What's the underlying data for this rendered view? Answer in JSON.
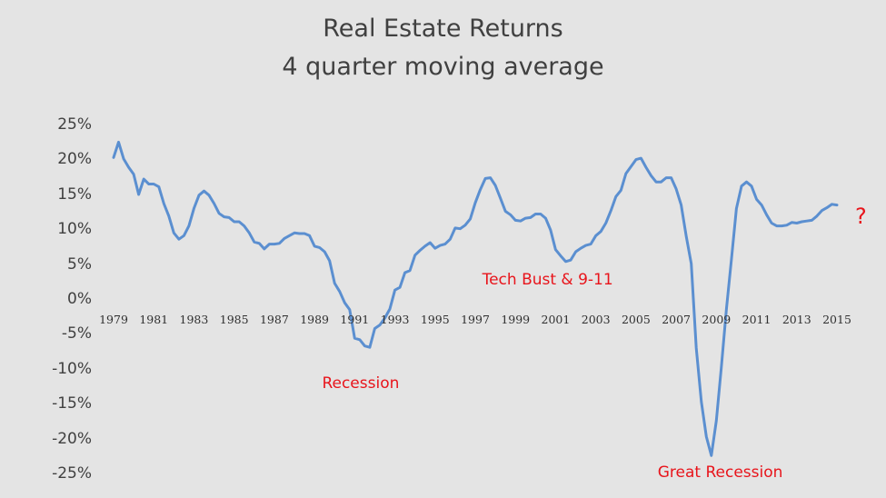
{
  "chart_data": {
    "type": "line",
    "title": "Real Estate Returns",
    "subtitle": "4 quarter moving average",
    "xlabel": "",
    "ylabel": "",
    "ylim": [
      -25,
      25
    ],
    "xlim": [
      1979,
      2015
    ],
    "grid": false,
    "ytick_labels": [
      "25%",
      "20%",
      "15%",
      "10%",
      "5%",
      "0%",
      "-5%",
      "-10%",
      "-15%",
      "-20%",
      "-25%"
    ],
    "xtick_labels": [
      "1979",
      "1981",
      "1983",
      "1985",
      "1987",
      "1989",
      "1991",
      "1993",
      "1995",
      "1997",
      "1999",
      "2001",
      "2003",
      "2005",
      "2007",
      "2009",
      "2011",
      "2013",
      "2015"
    ],
    "line_color": "#5b8fd0",
    "annotation_color": "#e8141b",
    "annotations": [
      {
        "text": "Recession",
        "x": 1991.3,
        "y": -12
      },
      {
        "text": "Tech Bust & 9-11",
        "x": 2000.6,
        "y": 2.8
      },
      {
        "text": "Great Recession",
        "x": 2009.2,
        "y": -24.8
      },
      {
        "text": "?",
        "x": 2016.2,
        "y": 12
      }
    ],
    "series": [
      {
        "values": [
          [
            1979.0,
            20.4
          ],
          [
            1979.25,
            22.6
          ],
          [
            1979.5,
            20.2
          ],
          [
            1979.75,
            19.0
          ],
          [
            1980.0,
            18.0
          ],
          [
            1980.25,
            15.1
          ],
          [
            1980.5,
            17.3
          ],
          [
            1980.75,
            16.6
          ],
          [
            1981.0,
            16.6
          ],
          [
            1981.25,
            16.2
          ],
          [
            1981.5,
            13.8
          ],
          [
            1981.75,
            12.0
          ],
          [
            1982.0,
            9.6
          ],
          [
            1982.25,
            8.7
          ],
          [
            1982.5,
            9.2
          ],
          [
            1982.75,
            10.6
          ],
          [
            1983.0,
            13.1
          ],
          [
            1983.25,
            15.0
          ],
          [
            1983.5,
            15.6
          ],
          [
            1983.75,
            15.0
          ],
          [
            1984.0,
            13.8
          ],
          [
            1984.25,
            12.4
          ],
          [
            1984.5,
            11.9
          ],
          [
            1984.75,
            11.8
          ],
          [
            1985.0,
            11.2
          ],
          [
            1985.25,
            11.2
          ],
          [
            1985.5,
            10.6
          ],
          [
            1985.75,
            9.6
          ],
          [
            1986.0,
            8.3
          ],
          [
            1986.25,
            8.1
          ],
          [
            1986.5,
            7.3
          ],
          [
            1986.75,
            8.0
          ],
          [
            1987.0,
            8.0
          ],
          [
            1987.25,
            8.1
          ],
          [
            1987.5,
            8.8
          ],
          [
            1987.75,
            9.2
          ],
          [
            1988.0,
            9.6
          ],
          [
            1988.25,
            9.5
          ],
          [
            1988.5,
            9.5
          ],
          [
            1988.75,
            9.2
          ],
          [
            1989.0,
            7.7
          ],
          [
            1989.25,
            7.5
          ],
          [
            1989.5,
            6.9
          ],
          [
            1989.75,
            5.6
          ],
          [
            1990.0,
            2.4
          ],
          [
            1990.25,
            1.2
          ],
          [
            1990.5,
            -0.4
          ],
          [
            1990.75,
            -1.4
          ],
          [
            1991.0,
            -5.5
          ],
          [
            1991.25,
            -5.7
          ],
          [
            1991.5,
            -6.6
          ],
          [
            1991.75,
            -6.8
          ],
          [
            1992.0,
            -4.1
          ],
          [
            1992.25,
            -3.6
          ],
          [
            1992.5,
            -2.6
          ],
          [
            1992.75,
            -1.3
          ],
          [
            1993.0,
            1.4
          ],
          [
            1993.25,
            1.8
          ],
          [
            1993.5,
            3.9
          ],
          [
            1993.75,
            4.2
          ],
          [
            1994.0,
            6.4
          ],
          [
            1994.25,
            7.1
          ],
          [
            1994.5,
            7.7
          ],
          [
            1994.75,
            8.2
          ],
          [
            1995.0,
            7.4
          ],
          [
            1995.25,
            7.8
          ],
          [
            1995.5,
            8.0
          ],
          [
            1995.75,
            8.7
          ],
          [
            1996.0,
            10.3
          ],
          [
            1996.25,
            10.2
          ],
          [
            1996.5,
            10.7
          ],
          [
            1996.75,
            11.6
          ],
          [
            1997.0,
            13.9
          ],
          [
            1997.25,
            15.8
          ],
          [
            1997.5,
            17.4
          ],
          [
            1997.75,
            17.5
          ],
          [
            1998.0,
            16.4
          ],
          [
            1998.25,
            14.6
          ],
          [
            1998.5,
            12.7
          ],
          [
            1998.75,
            12.2
          ],
          [
            1999.0,
            11.4
          ],
          [
            1999.25,
            11.3
          ],
          [
            1999.5,
            11.7
          ],
          [
            1999.75,
            11.8
          ],
          [
            2000.0,
            12.3
          ],
          [
            2000.25,
            12.3
          ],
          [
            2000.5,
            11.7
          ],
          [
            2000.75,
            10.0
          ],
          [
            2001.0,
            7.2
          ],
          [
            2001.25,
            6.3
          ],
          [
            2001.5,
            5.5
          ],
          [
            2001.75,
            5.7
          ],
          [
            2002.0,
            6.9
          ],
          [
            2002.25,
            7.4
          ],
          [
            2002.5,
            7.8
          ],
          [
            2002.75,
            8.0
          ],
          [
            2003.0,
            9.2
          ],
          [
            2003.25,
            9.8
          ],
          [
            2003.5,
            11.0
          ],
          [
            2003.75,
            12.8
          ],
          [
            2004.0,
            14.8
          ],
          [
            2004.25,
            15.7
          ],
          [
            2004.5,
            18.1
          ],
          [
            2004.75,
            19.1
          ],
          [
            2005.0,
            20.1
          ],
          [
            2005.25,
            20.3
          ],
          [
            2005.5,
            19.0
          ],
          [
            2005.75,
            17.8
          ],
          [
            2006.0,
            16.9
          ],
          [
            2006.25,
            16.9
          ],
          [
            2006.5,
            17.5
          ],
          [
            2006.75,
            17.5
          ],
          [
            2007.0,
            15.9
          ],
          [
            2007.25,
            13.6
          ],
          [
            2007.5,
            9.1
          ],
          [
            2007.75,
            5.2
          ],
          [
            2008.0,
            -6.9
          ],
          [
            2008.25,
            -14.6
          ],
          [
            2008.5,
            -19.6
          ],
          [
            2008.75,
            -22.3
          ],
          [
            2009.0,
            -17.3
          ],
          [
            2009.25,
            -9.5
          ],
          [
            2009.5,
            -1.3
          ],
          [
            2009.75,
            5.8
          ],
          [
            2010.0,
            13.1
          ],
          [
            2010.25,
            16.3
          ],
          [
            2010.5,
            16.9
          ],
          [
            2010.75,
            16.3
          ],
          [
            2011.0,
            14.4
          ],
          [
            2011.25,
            13.6
          ],
          [
            2011.5,
            12.2
          ],
          [
            2011.75,
            11.0
          ],
          [
            2012.0,
            10.6
          ],
          [
            2012.25,
            10.6
          ],
          [
            2012.5,
            10.7
          ],
          [
            2012.75,
            11.1
          ],
          [
            2013.0,
            11.0
          ],
          [
            2013.25,
            11.2
          ],
          [
            2013.5,
            11.3
          ],
          [
            2013.75,
            11.4
          ],
          [
            2014.0,
            12.0
          ],
          [
            2014.25,
            12.8
          ],
          [
            2014.5,
            13.2
          ],
          [
            2014.75,
            13.7
          ],
          [
            2015.0,
            13.6
          ]
        ]
      }
    ]
  }
}
